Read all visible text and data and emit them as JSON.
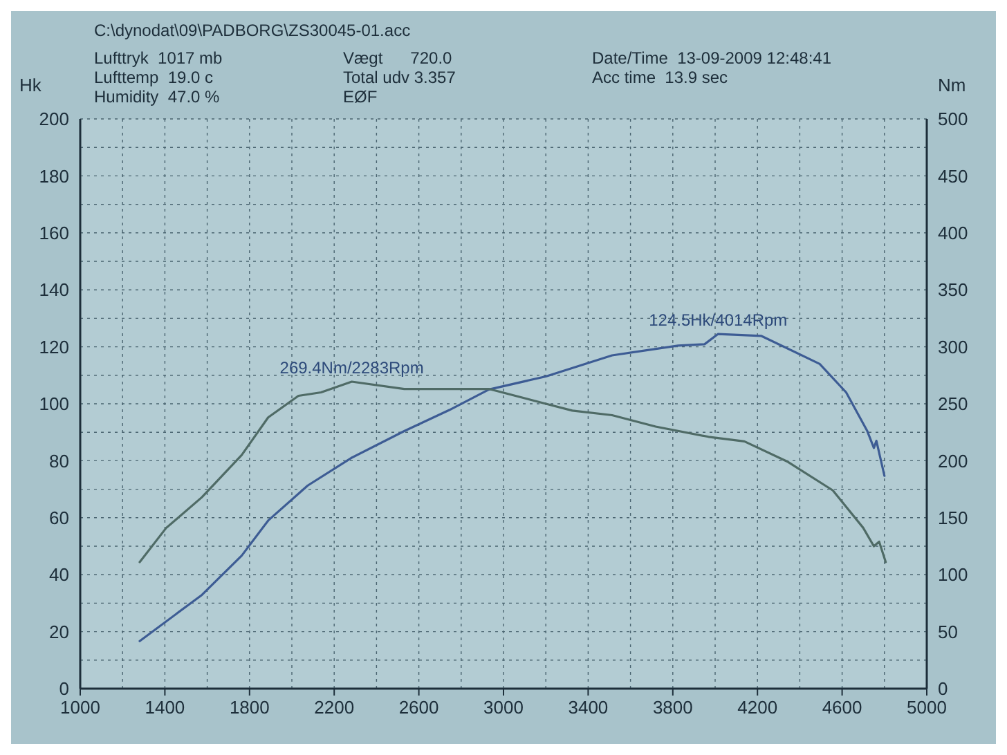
{
  "chart_data": {
    "type": "line",
    "ylabel": "Hk",
    "y2label": "Nm",
    "xlim": [
      1000,
      5000
    ],
    "xticks": [
      1000,
      {
        "value": 1200,
        "label": null
      },
      1400,
      {
        "value": 1600,
        "label": null
      },
      1800,
      {
        "value": 2000,
        "label": null
      },
      2200,
      {
        "value": 2400,
        "label": null
      },
      2600,
      {
        "value": 2800,
        "label": null
      },
      3000,
      {
        "value": 3200,
        "label": null
      },
      3400,
      {
        "value": 3600,
        "label": null
      },
      3800,
      {
        "value": 4000,
        "label": null
      },
      4200,
      {
        "value": 4400,
        "label": null
      },
      4600,
      {
        "value": 4800,
        "label": null
      },
      5000
    ],
    "ylim": [
      0,
      200
    ],
    "yticks": [
      0,
      {
        "value": 10,
        "label": null
      },
      20,
      {
        "value": 30,
        "label": null
      },
      40,
      {
        "value": 50,
        "label": null
      },
      60,
      {
        "value": 70,
        "label": null
      },
      80,
      {
        "value": 90,
        "label": null
      },
      100,
      {
        "value": 110,
        "label": null
      },
      120,
      {
        "value": 130,
        "label": null
      },
      140,
      {
        "value": 150,
        "label": null
      },
      160,
      {
        "value": 170,
        "label": null
      },
      180,
      {
        "value": 190,
        "label": null
      },
      200
    ],
    "y2lim": [
      0,
      500
    ],
    "y2ticks": [
      0,
      50,
      100,
      150,
      200,
      250,
      300,
      350,
      400,
      450,
      500
    ],
    "grid": true,
    "line_style": "solid",
    "marker": "none",
    "series": [
      {
        "color": "#3d5c94",
        "x": [
          1281,
          1575,
          1763,
          1888,
          2075,
          2281,
          2531,
          2744,
          2931,
          3200,
          3513,
          3825,
          3950,
          4014,
          4219,
          4494,
          4619,
          4719,
          4750,
          4762,
          4800
        ],
        "values": [
          16.7,
          32.9,
          46.7,
          59,
          71.3,
          81,
          90.4,
          97.8,
          105,
          109.6,
          117,
          120.4,
          120.9,
          124.5,
          123.8,
          114,
          104,
          90.4,
          84.5,
          87,
          74.7
        ]
      },
      {
        "color": "#4f6b66",
        "axis": "y2",
        "x": [
          1281,
          1406,
          1575,
          1763,
          1888,
          2031,
          2138,
          2283,
          2531,
          2931,
          3200,
          3325,
          3513,
          3719,
          3969,
          4138,
          4344,
          4556,
          4700,
          4750,
          4775,
          4806
        ],
        "values": [
          111,
          141,
          168,
          205,
          238,
          257,
          260,
          269.4,
          263,
          263,
          250,
          244,
          240,
          230,
          221,
          217,
          199,
          174,
          141,
          125,
          129,
          111
        ]
      }
    ],
    "annotations": [
      "C:\\dynodat\\09\\PADBORG\\ZS30045-01.acc",
      "Lufttryk  1017 mb",
      "Lufttemp  19.0 c",
      "Humidity  47.0 %",
      "Vægt      720.0",
      "Total udv 3.357",
      "EØF",
      "Date/Time  13-09-2009 12:48:41",
      "Acc time  13.9 sec",
      {
        "text": "124.5Hk/4014Rpm",
        "x": 4014,
        "y": 124.5
      },
      {
        "text": "269.4Nm/2283Rpm",
        "x": 2283,
        "y": 107.76
      }
    ]
  }
}
